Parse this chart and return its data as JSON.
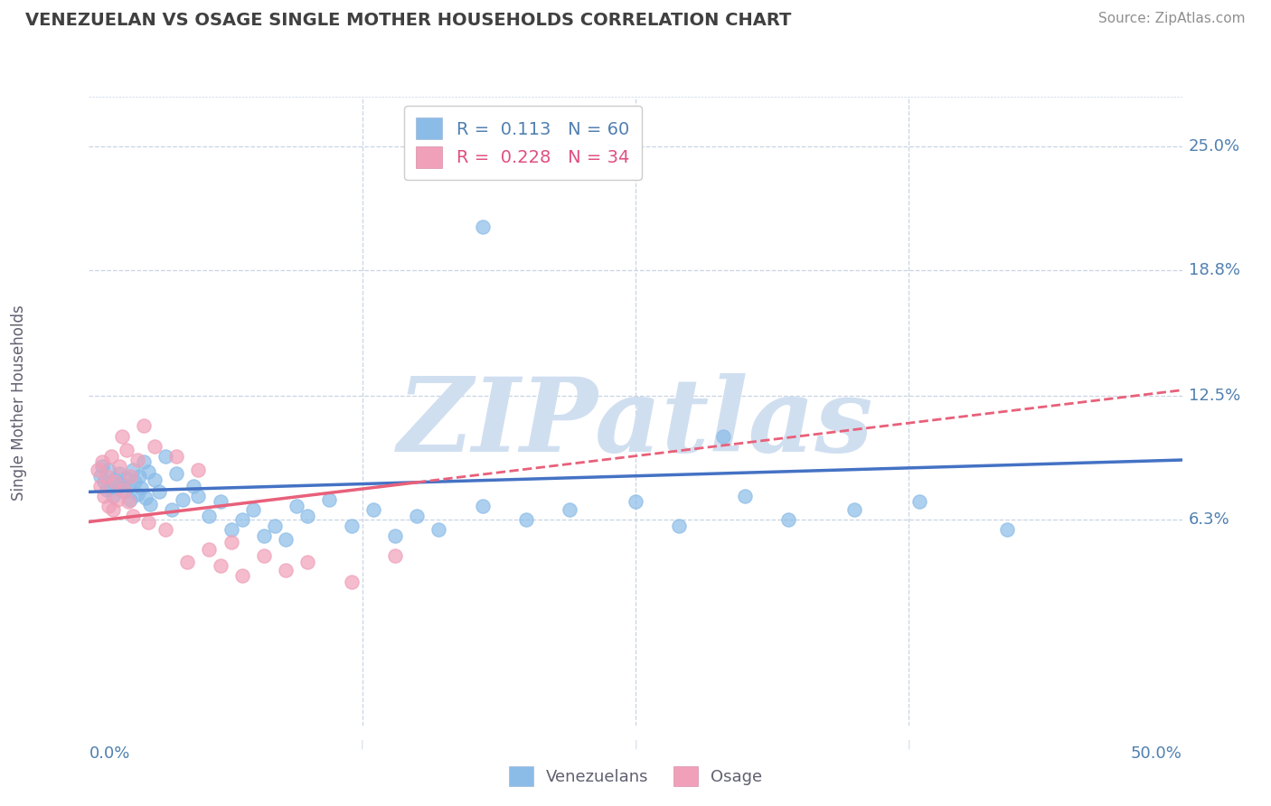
{
  "title": "VENEZUELAN VS OSAGE SINGLE MOTHER HOUSEHOLDS CORRELATION CHART",
  "source_text": "Source: ZipAtlas.com",
  "ylabel": "Single Mother Households",
  "ytick_labels": [
    "6.3%",
    "12.5%",
    "18.8%",
    "25.0%"
  ],
  "ytick_values": [
    0.063,
    0.125,
    0.188,
    0.25
  ],
  "xtick_positions": [
    0.0,
    0.125,
    0.25,
    0.375,
    0.5
  ],
  "xlim": [
    0.0,
    0.5
  ],
  "ylim": [
    -0.04,
    0.275
  ],
  "venezuelan_color": "#8bbce8",
  "osage_color": "#f0a0b8",
  "venezuelan_line_color": "#4472c4",
  "osage_line_color": "#e8607a",
  "venezuelan_R": 0.113,
  "venezuelan_N": 60,
  "osage_R": 0.228,
  "osage_N": 34,
  "watermark": "ZIPatlas",
  "watermark_color": "#d0dff0",
  "legend_label_1": "Venezuelans",
  "legend_label_2": "Osage",
  "background_color": "#ffffff",
  "grid_color": "#c8d4e4",
  "title_color": "#404040",
  "axis_label_color": "#5080b0",
  "ven_line_x0": 0.0,
  "ven_line_y0": 0.077,
  "ven_line_x1": 0.5,
  "ven_line_y1": 0.093,
  "osage_line_x0": 0.0,
  "osage_line_y0": 0.062,
  "osage_line_x1": 0.5,
  "osage_line_y1": 0.128,
  "venezuelan_scatter": [
    [
      0.005,
      0.085
    ],
    [
      0.006,
      0.09
    ],
    [
      0.007,
      0.082
    ],
    [
      0.008,
      0.078
    ],
    [
      0.009,
      0.088
    ],
    [
      0.01,
      0.08
    ],
    [
      0.011,
      0.075
    ],
    [
      0.012,
      0.083
    ],
    [
      0.013,
      0.079
    ],
    [
      0.014,
      0.086
    ],
    [
      0.015,
      0.081
    ],
    [
      0.016,
      0.077
    ],
    [
      0.017,
      0.084
    ],
    [
      0.018,
      0.08
    ],
    [
      0.019,
      0.073
    ],
    [
      0.02,
      0.088
    ],
    [
      0.021,
      0.082
    ],
    [
      0.022,
      0.076
    ],
    [
      0.023,
      0.085
    ],
    [
      0.024,
      0.079
    ],
    [
      0.025,
      0.092
    ],
    [
      0.026,
      0.074
    ],
    [
      0.027,
      0.087
    ],
    [
      0.028,
      0.071
    ],
    [
      0.03,
      0.083
    ],
    [
      0.032,
      0.077
    ],
    [
      0.035,
      0.095
    ],
    [
      0.038,
      0.068
    ],
    [
      0.04,
      0.086
    ],
    [
      0.043,
      0.073
    ],
    [
      0.048,
      0.08
    ],
    [
      0.05,
      0.075
    ],
    [
      0.055,
      0.065
    ],
    [
      0.06,
      0.072
    ],
    [
      0.065,
      0.058
    ],
    [
      0.07,
      0.063
    ],
    [
      0.075,
      0.068
    ],
    [
      0.08,
      0.055
    ],
    [
      0.085,
      0.06
    ],
    [
      0.09,
      0.053
    ],
    [
      0.095,
      0.07
    ],
    [
      0.1,
      0.065
    ],
    [
      0.11,
      0.073
    ],
    [
      0.12,
      0.06
    ],
    [
      0.13,
      0.068
    ],
    [
      0.14,
      0.055
    ],
    [
      0.15,
      0.065
    ],
    [
      0.16,
      0.058
    ],
    [
      0.18,
      0.07
    ],
    [
      0.2,
      0.063
    ],
    [
      0.22,
      0.068
    ],
    [
      0.25,
      0.072
    ],
    [
      0.27,
      0.06
    ],
    [
      0.3,
      0.075
    ],
    [
      0.32,
      0.063
    ],
    [
      0.35,
      0.068
    ],
    [
      0.38,
      0.072
    ],
    [
      0.42,
      0.058
    ],
    [
      0.18,
      0.21
    ],
    [
      0.29,
      0.105
    ]
  ],
  "osage_scatter": [
    [
      0.004,
      0.088
    ],
    [
      0.005,
      0.08
    ],
    [
      0.006,
      0.092
    ],
    [
      0.007,
      0.075
    ],
    [
      0.008,
      0.085
    ],
    [
      0.009,
      0.07
    ],
    [
      0.01,
      0.095
    ],
    [
      0.011,
      0.068
    ],
    [
      0.012,
      0.082
    ],
    [
      0.013,
      0.073
    ],
    [
      0.014,
      0.09
    ],
    [
      0.015,
      0.105
    ],
    [
      0.016,
      0.078
    ],
    [
      0.017,
      0.098
    ],
    [
      0.018,
      0.072
    ],
    [
      0.019,
      0.085
    ],
    [
      0.02,
      0.065
    ],
    [
      0.022,
      0.093
    ],
    [
      0.025,
      0.11
    ],
    [
      0.027,
      0.062
    ],
    [
      0.03,
      0.1
    ],
    [
      0.035,
      0.058
    ],
    [
      0.04,
      0.095
    ],
    [
      0.045,
      0.042
    ],
    [
      0.05,
      0.088
    ],
    [
      0.055,
      0.048
    ],
    [
      0.06,
      0.04
    ],
    [
      0.065,
      0.052
    ],
    [
      0.07,
      0.035
    ],
    [
      0.08,
      0.045
    ],
    [
      0.09,
      0.038
    ],
    [
      0.1,
      0.042
    ],
    [
      0.12,
      0.032
    ],
    [
      0.14,
      0.045
    ]
  ]
}
